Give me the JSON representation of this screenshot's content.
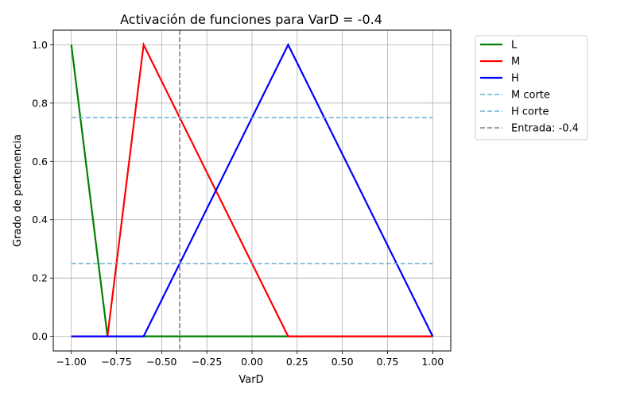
{
  "chart_data": {
    "type": "line",
    "title": "Activación de funciones para VarD = -0.4",
    "xlabel": "VarD",
    "ylabel": "Grado de pertenencia",
    "xlim": [
      -1.1,
      1.1
    ],
    "ylim": [
      -0.05,
      1.05
    ],
    "xticks": [
      -1.0,
      -0.75,
      -0.5,
      -0.25,
      0.0,
      0.25,
      0.5,
      0.75,
      1.0
    ],
    "xtick_labels": [
      "−1.00",
      "−0.75",
      "−0.50",
      "−0.25",
      "0.00",
      "0.25",
      "0.50",
      "0.75",
      "1.00"
    ],
    "yticks": [
      0.0,
      0.2,
      0.4,
      0.6,
      0.8,
      1.0
    ],
    "ytick_labels": [
      "0.0",
      "0.2",
      "0.4",
      "0.6",
      "0.8",
      "1.0"
    ],
    "grid": true,
    "legend_position": "outside-right-top",
    "series": [
      {
        "name": "L",
        "color": "#008000",
        "style": "solid",
        "x": [
          -1.0,
          -0.8,
          1.0
        ],
        "y": [
          1.0,
          0.0,
          0.0
        ]
      },
      {
        "name": "M",
        "color": "#ff0000",
        "style": "solid",
        "x": [
          -1.0,
          -0.8,
          -0.6,
          0.2,
          1.0
        ],
        "y": [
          0.0,
          0.0,
          1.0,
          0.0,
          0.0
        ]
      },
      {
        "name": "H",
        "color": "#0000ff",
        "style": "solid",
        "x": [
          -1.0,
          -0.6,
          0.2,
          1.0
        ],
        "y": [
          0.0,
          0.0,
          1.0,
          0.0
        ]
      },
      {
        "name": "M corte",
        "color": "#6baed6",
        "style": "dashed",
        "x": [
          -1.0,
          1.0
        ],
        "y": [
          0.75,
          0.75
        ]
      },
      {
        "name": "H corte",
        "color": "#6baed6",
        "style": "dashed",
        "x": [
          -1.0,
          1.0
        ],
        "y": [
          0.25,
          0.25
        ]
      }
    ],
    "vline": {
      "name": "Entrada: -0.4",
      "x": -0.4,
      "color": "#808080",
      "style": "dashed"
    }
  }
}
